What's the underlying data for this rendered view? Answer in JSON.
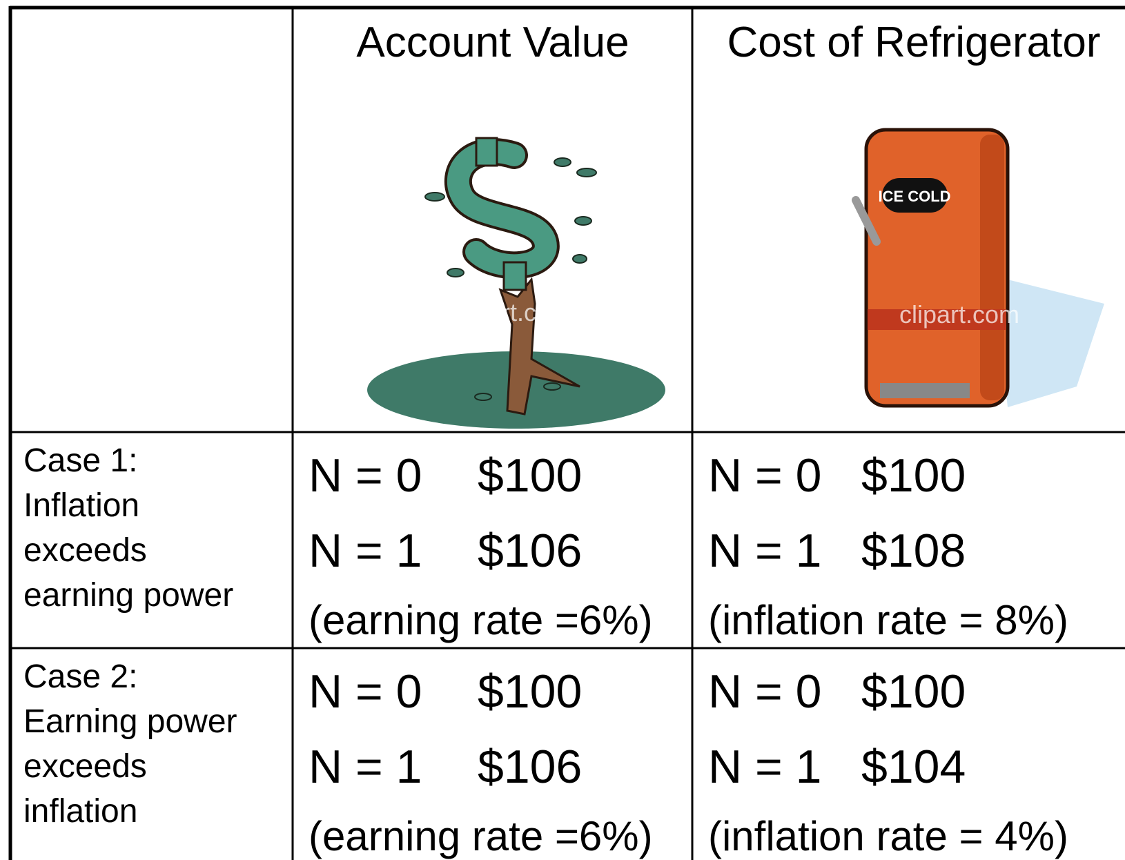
{
  "table": {
    "header": [
      "Account Value",
      "Cost of Refrigerator"
    ],
    "rows": [
      {
        "label": [
          "Case 1:",
          "Inflation",
          "exceeds",
          "earning power"
        ],
        "account": {
          "lines": [
            [
              "N = 0",
              "$100"
            ],
            [
              "N = 1",
              "$106"
            ]
          ],
          "note": "(earning rate =6%)"
        },
        "cost": {
          "lines": [
            [
              "N = 0",
              "$100"
            ],
            [
              "N = 1",
              "$108"
            ]
          ],
          "note": "(inflation rate = 8%)"
        }
      },
      {
        "label": [
          "Case 2:",
          "Earning power",
          "exceeds",
          "inflation"
        ],
        "account": {
          "lines": [
            [
              "N = 0",
              "$100"
            ],
            [
              "N = 1",
              "$106"
            ]
          ],
          "note": "(earning rate =6%)"
        },
        "cost": {
          "lines": [
            [
              "N = 0",
              "$100"
            ],
            [
              "N = 1",
              "$104"
            ]
          ],
          "note": "(inflation rate = 4%)"
        }
      }
    ]
  },
  "images": {
    "fridge_label": "ICE COLD",
    "watermark": "clipart.com"
  }
}
